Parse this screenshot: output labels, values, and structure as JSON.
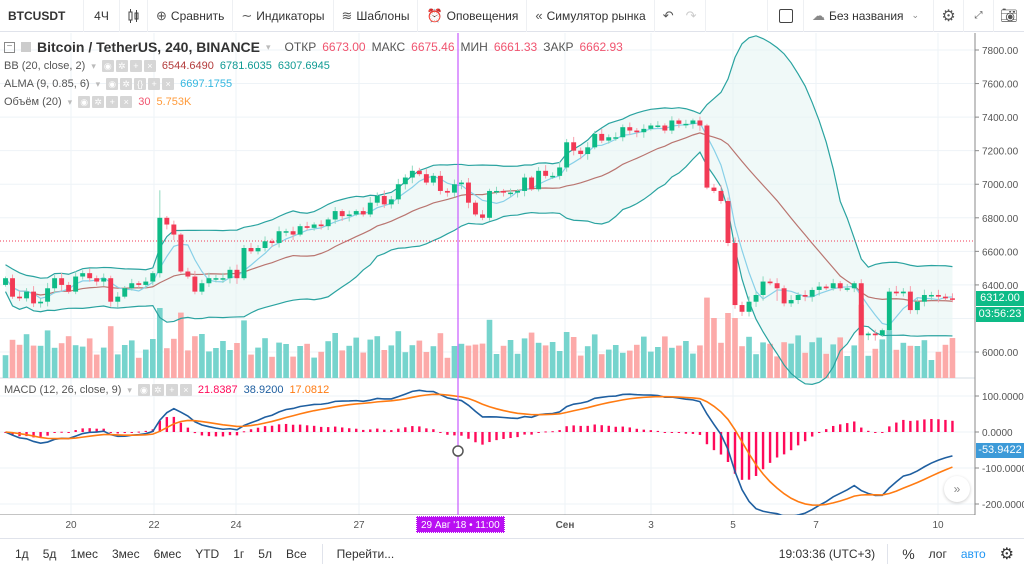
{
  "toolbar": {
    "symbol": "BTCUSDT",
    "interval": "4Ч",
    "compare_label": "Сравнить",
    "indicators_label": "Индикаторы",
    "templates_label": "Шаблоны",
    "alerts_label": "Оповещения",
    "replay_label": "Симулятор рынка",
    "layout_name": "Без названия"
  },
  "legend": {
    "title": "Bitcoin / TetherUS, 240, BINANCE",
    "open_label": "ОТКР",
    "open": "6673.00",
    "high_label": "МАКС",
    "high": "6675.46",
    "low_label": "МИН",
    "low": "6661.33",
    "close_label": "ЗАКР",
    "close": "6662.93",
    "bb": {
      "name": "BB (20, close, 2)",
      "v1": "6544.6490",
      "v2": "6781.6035",
      "v3": "6307.6945"
    },
    "alma": {
      "name": "ALMA (9, 0.85, 6)",
      "v1": "6697.1755"
    },
    "volume": {
      "name": "Объём (20)",
      "v1": "30",
      "v2": "5.753K"
    },
    "macd": {
      "name": "MACD (12, 26, close, 9)",
      "v1": "21.8387",
      "v2": "38.9200",
      "v3": "17.0812"
    }
  },
  "price_axis": {
    "labels": [
      "7800.00",
      "7600.00",
      "7400.00",
      "7200.00",
      "7000.00",
      "6800.00",
      "6600.00",
      "6400.00",
      "6000.00"
    ],
    "last_price": "6312.00",
    "countdown": "03:56:23"
  },
  "macd_axis": {
    "labels": [
      "100.0000",
      "0.0000",
      "-100.0000",
      "-200.0000"
    ],
    "last_value": "-53.9422"
  },
  "time_axis": {
    "labels": [
      "20",
      "22",
      "24",
      "27",
      "Сен",
      "3",
      "5",
      "7",
      "10"
    ],
    "crosshair_date": "29 Авг '18 • 11:00"
  },
  "bottombar": {
    "ranges": [
      "1д",
      "5д",
      "1мес",
      "3мес",
      "6мес",
      "YTD",
      "1г",
      "5л",
      "Все"
    ],
    "goto_label": "Перейти...",
    "clock": "19:03:36 (UTC+3)",
    "percent_label": "%",
    "log_label": "лог",
    "auto_label": "авто"
  },
  "colors": {
    "up": "#26a69a",
    "up_candle": "#0ebb87",
    "down": "#f23a55",
    "vol_up": "#76d4cd",
    "vol_down": "#fcaaa9",
    "bb_band": "#2aa3a0",
    "bb_basis": "#b97570",
    "alma": "#88d0e8",
    "macd": "#1f5fa0",
    "signal": "#ff7b12",
    "hist": "#ff0a5a",
    "crosshair": "#c75bff"
  },
  "chart_data": {
    "type": "candlestick",
    "title": "Bitcoin / TetherUS, 240, BINANCE",
    "ylim": [
      5900,
      7900
    ],
    "closes": [
      6440,
      6330,
      6320,
      6360,
      6290,
      6300,
      6380,
      6440,
      6400,
      6360,
      6450,
      6470,
      6440,
      6420,
      6440,
      6300,
      6330,
      6380,
      6410,
      6400,
      6420,
      6470,
      6800,
      6760,
      6700,
      6480,
      6450,
      6360,
      6410,
      6440,
      6440,
      6440,
      6490,
      6440,
      6620,
      6600,
      6620,
      6660,
      6650,
      6720,
      6720,
      6700,
      6750,
      6740,
      6760,
      6750,
      6790,
      6840,
      6810,
      6820,
      6840,
      6820,
      6890,
      6930,
      6880,
      6910,
      7000,
      7040,
      7080,
      7060,
      7010,
      7050,
      6960,
      6950,
      7000,
      7010,
      6890,
      6820,
      6800,
      6960,
      6960,
      6950,
      6950,
      6960,
      7040,
      6970,
      7080,
      7050,
      7050,
      7100,
      7250,
      7200,
      7180,
      7220,
      7300,
      7260,
      7280,
      7280,
      7340,
      7320,
      7310,
      7330,
      7350,
      7350,
      7320,
      7380,
      7360,
      7360,
      7380,
      7350,
      6980,
      6960,
      6900,
      6650,
      6280,
      6240,
      6300,
      6340,
      6420,
      6410,
      6380,
      6290,
      6310,
      6340,
      6330,
      6370,
      6390,
      6380,
      6410,
      6380,
      6380,
      6410,
      6100,
      6110,
      6100,
      6130,
      6360,
      6350,
      6360,
      6250,
      6300,
      6340,
      6340,
      6330,
      6320,
      6312
    ]
  }
}
